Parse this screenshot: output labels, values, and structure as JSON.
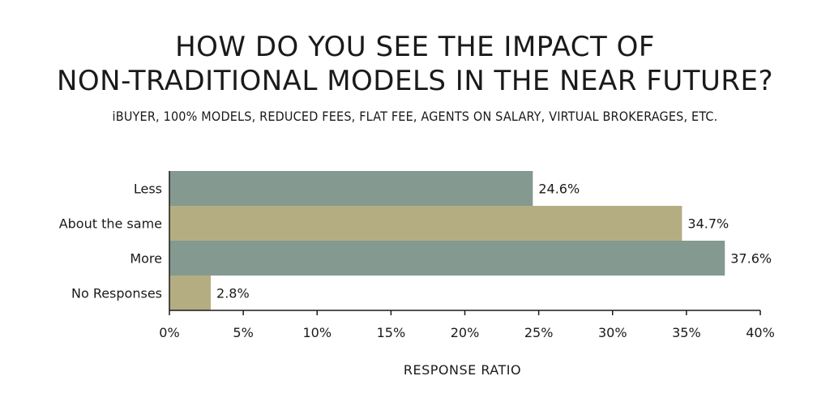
{
  "chart_data": {
    "type": "bar",
    "orientation": "horizontal",
    "title_line1": "HOW DO YOU SEE THE IMPACT OF",
    "title_line2": "NON-TRADITIONAL MODELS IN THE NEAR FUTURE?",
    "subtitle": "iBUYER, 100% MODELS, REDUCED FEES, FLAT FEE, AGENTS ON SALARY, VIRTUAL BROKERAGES, ETC.",
    "xlabel": "RESPONSE RATIO",
    "ylabel": "",
    "categories": [
      "Less",
      "About the same",
      "More",
      "No Responses"
    ],
    "values": [
      24.6,
      34.7,
      37.6,
      2.8
    ],
    "value_labels": [
      "24.6%",
      "34.7%",
      "37.6%",
      "2.8%"
    ],
    "xlim": [
      0,
      40
    ],
    "xticks": [
      "0%",
      "5%",
      "10%",
      "15%",
      "20%",
      "25%",
      "30%",
      "35%",
      "40%"
    ],
    "grid": false,
    "legend": "none",
    "colors": [
      "#849990",
      "#b5ad82",
      "#849990",
      "#b5ad82"
    ]
  }
}
